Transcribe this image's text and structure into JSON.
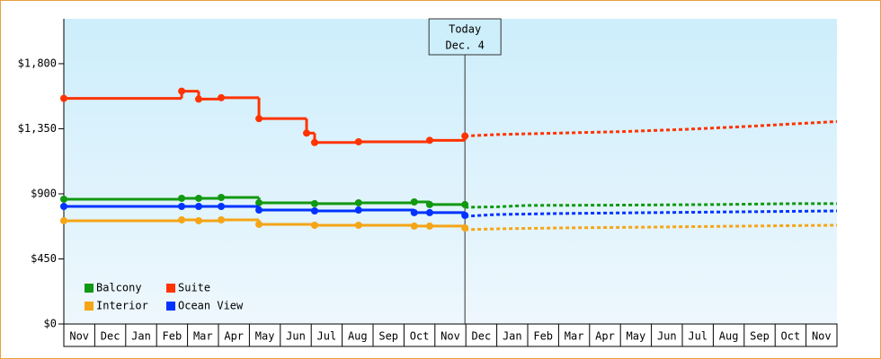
{
  "chart_data": {
    "type": "line",
    "categories": [
      "Nov",
      "Dec",
      "Jan",
      "Feb",
      "Mar",
      "Apr",
      "May",
      "Jun",
      "Jul",
      "Aug",
      "Sep",
      "Oct",
      "Nov",
      "Dec",
      "Jan",
      "Feb",
      "Mar",
      "Apr",
      "May",
      "Jun",
      "Jul",
      "Aug",
      "Sep",
      "Oct",
      "Nov"
    ],
    "xlim": [
      0,
      25
    ],
    "ylim": [
      0,
      2110
    ],
    "yticks": [
      {
        "value": 0,
        "label": "$0"
      },
      {
        "value": 450,
        "label": "$450"
      },
      {
        "value": 900,
        "label": "$900"
      },
      {
        "value": 1350,
        "label": "$1,350"
      },
      {
        "value": 1800,
        "label": "$1,800"
      }
    ],
    "annotation": {
      "x": 12.97,
      "lines": [
        "Today",
        "Dec. 4"
      ]
    },
    "series": [
      {
        "name": "Balcony",
        "color": "#119911",
        "x": [
          0,
          3.81,
          4.36,
          5.09,
          6.31,
          8.11,
          9.53,
          11.33,
          11.83,
          12.97
        ],
        "values": [
          863,
          869,
          869,
          875,
          838,
          832,
          838,
          844,
          826,
          826
        ],
        "forecast_x": [
          12.97,
          14,
          15,
          18,
          21,
          23.5,
          25
        ],
        "forecast_values": [
          807,
          810,
          820,
          822,
          826,
          832,
          832
        ]
      },
      {
        "name": "Suite",
        "color": "#ff3300",
        "x": [
          0,
          3.81,
          4.36,
          5.09,
          6.31,
          7.85,
          8.11,
          9.53,
          11.83,
          12.97
        ],
        "values": [
          1560,
          1610,
          1555,
          1565,
          1420,
          1320,
          1255,
          1260,
          1270,
          1300
        ],
        "forecast_x": [
          12.97,
          14,
          16,
          18,
          20,
          22,
          25
        ],
        "forecast_values": [
          1300,
          1310,
          1320,
          1330,
          1345,
          1365,
          1400
        ]
      },
      {
        "name": "Interior",
        "color": "#f5a516",
        "x": [
          0,
          3.81,
          4.36,
          5.09,
          6.31,
          8.11,
          9.53,
          11.33,
          11.83,
          12.97
        ],
        "values": [
          714,
          720,
          714,
          720,
          689,
          683,
          683,
          677,
          677,
          664
        ],
        "forecast_x": [
          12.97,
          14,
          16,
          19,
          22,
          25
        ],
        "forecast_values": [
          652,
          658,
          664,
          670,
          677,
          683
        ]
      },
      {
        "name": "Ocean View",
        "color": "#0033ff",
        "x": [
          0,
          3.81,
          4.36,
          5.09,
          6.31,
          8.11,
          9.53,
          11.33,
          11.83,
          12.97
        ],
        "values": [
          813,
          813,
          813,
          813,
          788,
          782,
          788,
          770,
          770,
          751
        ],
        "forecast_x": [
          12.97,
          14,
          16,
          19,
          22,
          25
        ],
        "forecast_values": [
          745,
          757,
          764,
          770,
          776,
          782
        ]
      }
    ]
  }
}
